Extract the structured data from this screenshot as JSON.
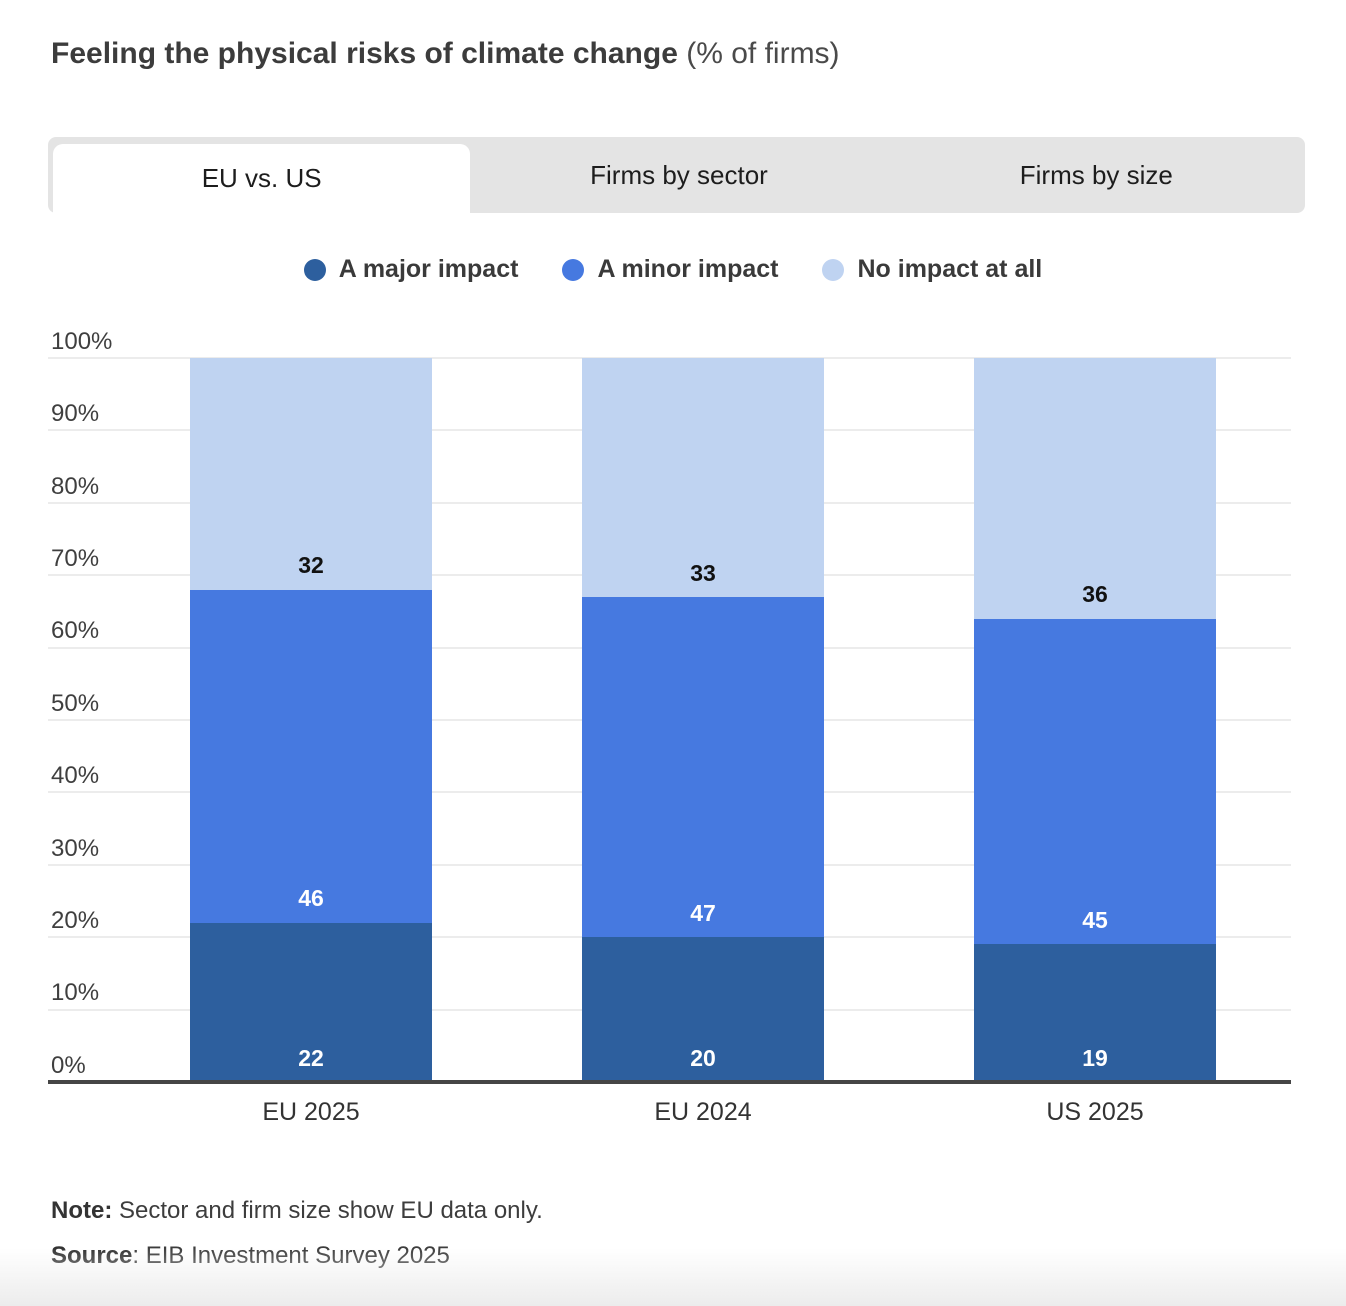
{
  "title": {
    "main": "Feeling the physical risks of climate change",
    "suffix": " (% of firms)"
  },
  "tabs": [
    {
      "label": "EU vs. US",
      "active": true
    },
    {
      "label": "Firms by sector",
      "active": false
    },
    {
      "label": "Firms by size",
      "active": false
    }
  ],
  "footnotes": {
    "note_label": "Note:",
    "note_text": " Sector and firm size show EU data only.",
    "source_label": "Source",
    "source_text": ": EIB Investment Survey 2025"
  },
  "colors": {
    "major_impact": "#2d5f9e",
    "minor_impact": "#4679e0",
    "no_impact": "#bfd3f1",
    "tab_bar_gray": "#e4e4e4",
    "gridline": "#ececec",
    "axis": "#454545"
  },
  "chart_data": {
    "type": "bar",
    "stacked": true,
    "categories": [
      "EU 2025",
      "EU 2024",
      "US 2025"
    ],
    "series": [
      {
        "name": "A major impact",
        "color": "#2d5f9e",
        "label_color": "#ffffff",
        "values": [
          22,
          20,
          19
        ]
      },
      {
        "name": "A minor impact",
        "color": "#4679e0",
        "label_color": "#ffffff",
        "values": [
          46,
          47,
          45
        ]
      },
      {
        "name": "No impact at all",
        "color": "#bfd3f1",
        "label_color": "#111111",
        "values": [
          32,
          33,
          36
        ]
      }
    ],
    "title": "Feeling the physical risks of climate change (% of firms)",
    "xlabel": "",
    "ylabel": "",
    "ylim": [
      0,
      100
    ],
    "yticks": [
      0,
      10,
      20,
      30,
      40,
      50,
      60,
      70,
      80,
      90,
      100
    ],
    "ytick_suffix": "%",
    "grid": true,
    "legend_position": "top"
  }
}
